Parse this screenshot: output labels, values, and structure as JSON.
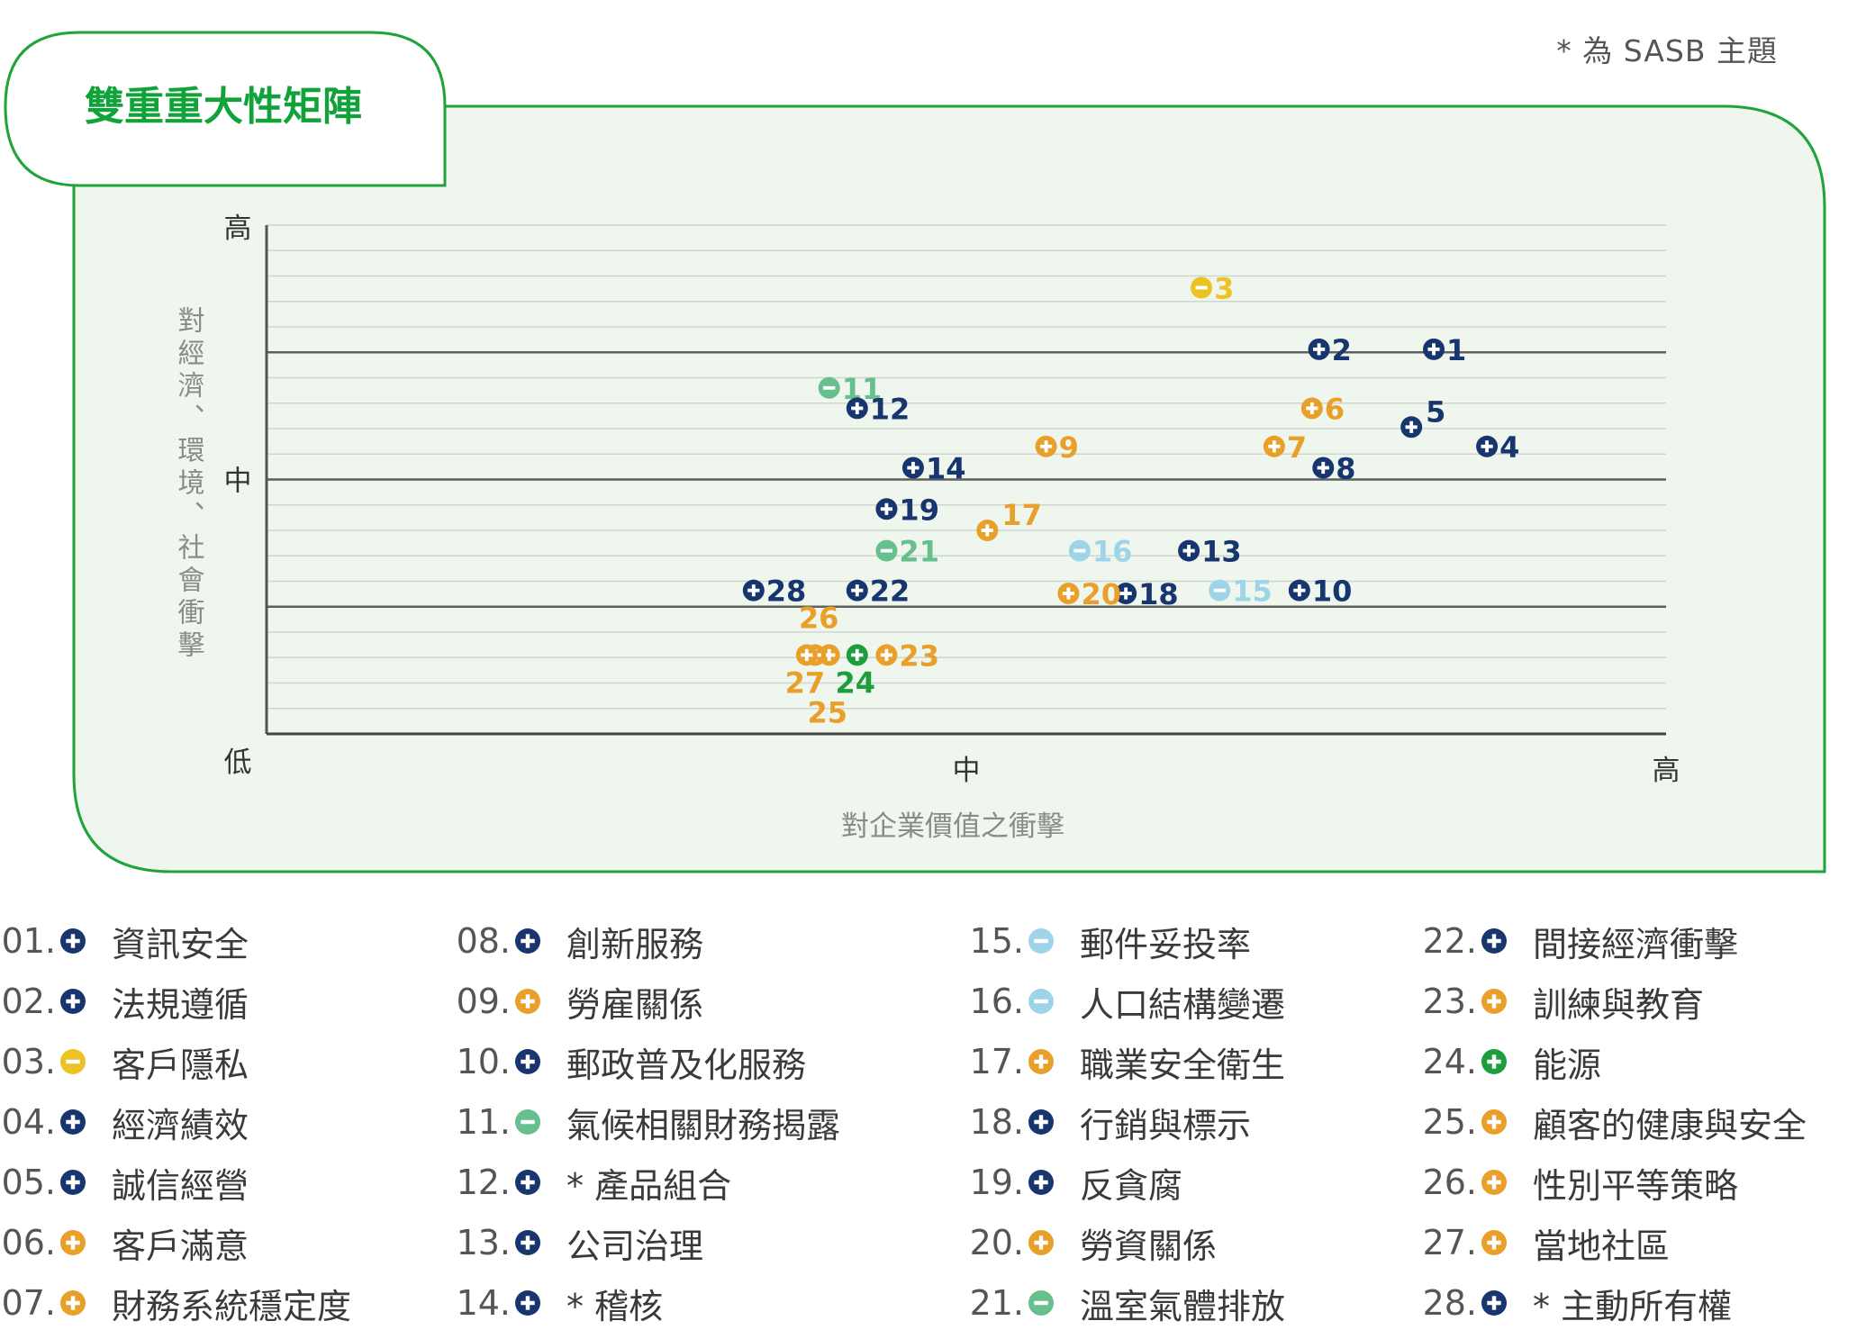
{
  "note": "* 為 SASB 主題",
  "colors": {
    "frame": "#1fa33a",
    "frame_fill": "#eff6ee",
    "title": "#11a23a",
    "navy": "#17356e",
    "orange": "#e9a02a",
    "yellow": "#edc223",
    "teal": "#66bf8c",
    "lightblue": "#9dd4e8",
    "green": "#1d9e3b",
    "axis": "#555555",
    "grid": "#cfd6cf"
  },
  "chart_data": {
    "type": "scatter",
    "title": "雙重重大性矩陣",
    "xlabel": "對企業價值之衝擊",
    "ylabel": "對經濟、環境、社會衝擊",
    "x_ticks": [
      "低",
      "中",
      "高"
    ],
    "y_ticks": [
      "低",
      "中",
      "高"
    ],
    "xlim": [
      0,
      100
    ],
    "ylim": [
      0,
      100
    ],
    "grid": true,
    "points": [
      {
        "id": "1",
        "x": 83.4,
        "y": 75.6,
        "color": "navy",
        "symbol": "plus",
        "label_pos": "right"
      },
      {
        "id": "2",
        "x": 75.2,
        "y": 75.6,
        "color": "navy",
        "symbol": "plus",
        "label_pos": "right"
      },
      {
        "id": "3",
        "x": 66.8,
        "y": 87.7,
        "color": "yellow",
        "symbol": "minus",
        "label_pos": "right"
      },
      {
        "id": "4",
        "x": 87.2,
        "y": 56.5,
        "color": "navy",
        "symbol": "plus",
        "label_pos": "right"
      },
      {
        "id": "5",
        "x": 81.8,
        "y": 60.3,
        "color": "navy",
        "symbol": "plus",
        "label_pos": "upper-right"
      },
      {
        "id": "6",
        "x": 74.7,
        "y": 64.0,
        "color": "orange",
        "symbol": "plus",
        "label_pos": "right"
      },
      {
        "id": "7",
        "x": 72.0,
        "y": 56.5,
        "color": "orange",
        "symbol": "plus",
        "label_pos": "right"
      },
      {
        "id": "8",
        "x": 75.5,
        "y": 52.3,
        "color": "navy",
        "symbol": "plus",
        "label_pos": "right"
      },
      {
        "id": "9",
        "x": 55.7,
        "y": 56.5,
        "color": "orange",
        "symbol": "plus",
        "label_pos": "right"
      },
      {
        "id": "10",
        "x": 73.8,
        "y": 28.2,
        "color": "navy",
        "symbol": "plus",
        "label_pos": "right"
      },
      {
        "id": "11",
        "x": 40.2,
        "y": 68.0,
        "color": "teal",
        "symbol": "minus",
        "label_pos": "right"
      },
      {
        "id": "12",
        "x": 42.2,
        "y": 64.0,
        "color": "navy",
        "symbol": "plus",
        "label_pos": "right"
      },
      {
        "id": "13",
        "x": 65.9,
        "y": 36.0,
        "color": "navy",
        "symbol": "plus",
        "label_pos": "right"
      },
      {
        "id": "14",
        "x": 46.2,
        "y": 52.3,
        "color": "navy",
        "symbol": "plus",
        "label_pos": "right"
      },
      {
        "id": "15",
        "x": 68.1,
        "y": 28.2,
        "color": "lightblue",
        "symbol": "minus",
        "label_pos": "right"
      },
      {
        "id": "16",
        "x": 58.1,
        "y": 36.0,
        "color": "lightblue",
        "symbol": "minus",
        "label_pos": "right"
      },
      {
        "id": "17",
        "x": 51.5,
        "y": 40.0,
        "color": "orange",
        "symbol": "plus",
        "label_pos": "upper-right"
      },
      {
        "id": "18",
        "x": 61.4,
        "y": 27.6,
        "color": "navy",
        "symbol": "plus",
        "label_pos": "right"
      },
      {
        "id": "19",
        "x": 44.3,
        "y": 44.2,
        "color": "navy",
        "symbol": "plus",
        "label_pos": "right"
      },
      {
        "id": "20",
        "x": 57.3,
        "y": 27.6,
        "color": "orange",
        "symbol": "plus",
        "label_pos": "right"
      },
      {
        "id": "21",
        "x": 44.3,
        "y": 36.0,
        "color": "teal",
        "symbol": "minus",
        "label_pos": "right"
      },
      {
        "id": "22",
        "x": 42.2,
        "y": 28.2,
        "color": "navy",
        "symbol": "plus",
        "label_pos": "right"
      },
      {
        "id": "23",
        "x": 44.3,
        "y": 15.5,
        "color": "orange",
        "symbol": "plus",
        "label_pos": "right"
      },
      {
        "id": "24",
        "x": 42.2,
        "y": 15.5,
        "color": "green",
        "symbol": "plus",
        "label_pos": "below"
      },
      {
        "id": "25",
        "x": 40.2,
        "y": 15.5,
        "color": "orange",
        "symbol": "plus",
        "label_pos": "below-far"
      },
      {
        "id": "26",
        "x": 39.2,
        "y": 15.5,
        "color": "orange",
        "symbol": "plus",
        "label_pos": "above-far"
      },
      {
        "id": "27",
        "x": 38.6,
        "y": 15.5,
        "color": "orange",
        "symbol": "plus",
        "label_pos": "below"
      },
      {
        "id": "28",
        "x": 34.8,
        "y": 28.2,
        "color": "navy",
        "symbol": "plus",
        "label_pos": "right"
      }
    ]
  },
  "legend": [
    {
      "num": "01.",
      "name": "資訊安全",
      "color": "navy",
      "symbol": "plus"
    },
    {
      "num": "02.",
      "name": "法規遵循",
      "color": "navy",
      "symbol": "plus"
    },
    {
      "num": "03.",
      "name": "客戶隱私",
      "color": "yellow",
      "symbol": "minus"
    },
    {
      "num": "04.",
      "name": "經濟績效",
      "color": "navy",
      "symbol": "plus"
    },
    {
      "num": "05.",
      "name": "誠信經營",
      "color": "navy",
      "symbol": "plus"
    },
    {
      "num": "06.",
      "name": "客戶滿意",
      "color": "orange",
      "symbol": "plus"
    },
    {
      "num": "07.",
      "name": "財務系統穩定度",
      "color": "orange",
      "symbol": "plus"
    },
    {
      "num": "08.",
      "name": "創新服務",
      "color": "navy",
      "symbol": "plus"
    },
    {
      "num": "09.",
      "name": "勞雇關係",
      "color": "orange",
      "symbol": "plus"
    },
    {
      "num": "10.",
      "name": "郵政普及化服務",
      "color": "navy",
      "symbol": "plus"
    },
    {
      "num": "11.",
      "name": "氣候相關財務揭露",
      "color": "teal",
      "symbol": "minus"
    },
    {
      "num": "12.",
      "name": "* 產品組合",
      "color": "navy",
      "symbol": "plus"
    },
    {
      "num": "13.",
      "name": "公司治理",
      "color": "navy",
      "symbol": "plus"
    },
    {
      "num": "14.",
      "name": "* 稽核",
      "color": "navy",
      "symbol": "plus"
    },
    {
      "num": "15.",
      "name": "郵件妥投率",
      "color": "lightblue",
      "symbol": "minus"
    },
    {
      "num": "16.",
      "name": "人口結構變遷",
      "color": "lightblue",
      "symbol": "minus"
    },
    {
      "num": "17.",
      "name": "職業安全衛生",
      "color": "orange",
      "symbol": "plus"
    },
    {
      "num": "18.",
      "name": "行銷與標示",
      "color": "navy",
      "symbol": "plus"
    },
    {
      "num": "19.",
      "name": "反貪腐",
      "color": "navy",
      "symbol": "plus"
    },
    {
      "num": "20.",
      "name": "勞資關係",
      "color": "orange",
      "symbol": "plus"
    },
    {
      "num": "21.",
      "name": "溫室氣體排放",
      "color": "teal",
      "symbol": "minus"
    },
    {
      "num": "22.",
      "name": "間接經濟衝擊",
      "color": "navy",
      "symbol": "plus"
    },
    {
      "num": "23.",
      "name": "訓練與教育",
      "color": "orange",
      "symbol": "plus"
    },
    {
      "num": "24.",
      "name": "能源",
      "color": "green",
      "symbol": "plus"
    },
    {
      "num": "25.",
      "name": "顧客的健康與安全",
      "color": "orange",
      "symbol": "plus"
    },
    {
      "num": "26.",
      "name": "性別平等策略",
      "color": "orange",
      "symbol": "plus"
    },
    {
      "num": "27.",
      "name": "當地社區",
      "color": "orange",
      "symbol": "plus"
    },
    {
      "num": "28.",
      "name": "* 主動所有權",
      "color": "navy",
      "symbol": "plus"
    }
  ]
}
